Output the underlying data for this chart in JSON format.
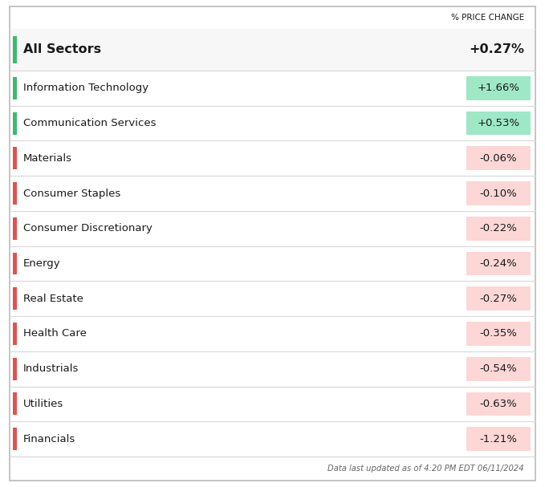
{
  "header_label": "% PRICE CHANGE",
  "all_sectors_label": "All Sectors",
  "all_sectors_value": "+0.27%",
  "sectors": [
    {
      "name": "Information Technology",
      "value": "+1.66%",
      "change": 1.66
    },
    {
      "name": "Communication Services",
      "value": "+0.53%",
      "change": 0.53
    },
    {
      "name": "Materials",
      "value": "-0.06%",
      "change": -0.06
    },
    {
      "name": "Consumer Staples",
      "value": "-0.10%",
      "change": -0.1
    },
    {
      "name": "Consumer Discretionary",
      "value": "-0.22%",
      "change": -0.22
    },
    {
      "name": "Energy",
      "value": "-0.24%",
      "change": -0.24
    },
    {
      "name": "Real Estate",
      "value": "-0.27%",
      "change": -0.27
    },
    {
      "name": "Health Care",
      "value": "-0.35%",
      "change": -0.35
    },
    {
      "name": "Industrials",
      "value": "-0.54%",
      "change": -0.54
    },
    {
      "name": "Utilities",
      "value": "-0.63%",
      "change": -0.63
    },
    {
      "name": "Financials",
      "value": "-1.21%",
      "change": -1.21
    }
  ],
  "footer_text": "Data last updated as of 4:20 PM EDT 06/11/2024",
  "bg_color": "#ffffff",
  "border_color": "#bbbbbb",
  "positive_bar_color": "#3dba6f",
  "negative_bar_color": "#e05252",
  "positive_bg_color": "#9ee8c5",
  "negative_bg_color": "#fdd6d6",
  "all_sectors_bar_color": "#3dba6f",
  "row_line_color": "#d8d8d8",
  "text_color": "#1a1a1a",
  "footer_text_color": "#666666",
  "header_fontsize": 7.5,
  "all_sectors_fontsize": 11.5,
  "sector_fontsize": 9.5,
  "badge_fontsize": 9.5,
  "footer_fontsize": 7.2
}
